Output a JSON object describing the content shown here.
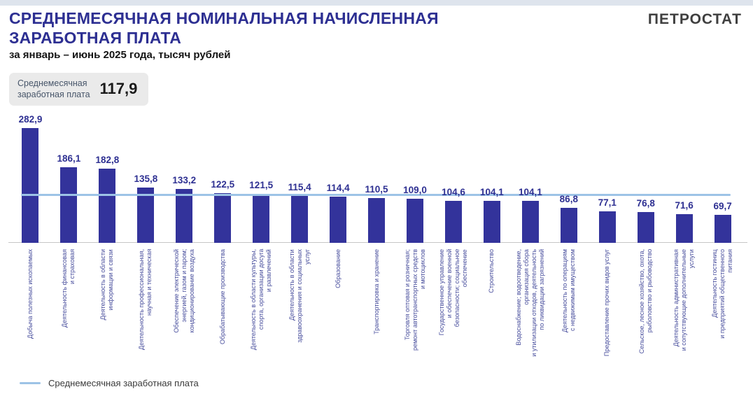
{
  "page": {
    "title": "СРЕДНЕМЕСЯЧНАЯ НОМИНАЛЬНАЯ НАЧИСЛЕННАЯ\nЗАРАБОТНАЯ ПЛАТА",
    "subtitle": "за январь – июнь 2025 года, тысяч рублей",
    "logo": "ПЕТРОСТАТ"
  },
  "average_box": {
    "label": "Среднемесячная\nзаработная плата",
    "value": "117,9"
  },
  "legend": {
    "label": "Среднемесячная заработная плата"
  },
  "colors": {
    "title": "#2d2f92",
    "bar": "#33339b",
    "average_line": "#9dc3e6",
    "value_label": "#2e3092",
    "category_label": "#474d9c",
    "axis": "#c6c6c6",
    "top_band": "#dee4ed",
    "average_box_bg": "#eaeaea"
  },
  "chart_data": {
    "type": "bar",
    "title": "Среднемесячная номинальная начисленная заработная плата за январь – июнь 2025 года, тысяч рублей",
    "ylabel": "тысяч рублей",
    "xlabel": "",
    "ylim": [
      0,
      320
    ],
    "grid": false,
    "legend_position": "bottom-left",
    "average_line": 117.9,
    "average_line_label": "Среднемесячная заработная плата",
    "categories": [
      "Добыча полезных ископаемых",
      "Деятельность финансовая\nи страховая",
      "Деятельность в области\nинформации и связи",
      "Деятельность профессиональная,\nнаучная и техническая",
      "Обеспечение электрической\nэнергией, газом и паром;\nкондиционирование воздуха",
      "Обрабатывающие производства",
      "Деятельность в области культуры,\nспорта, организации досуга\nи развлечений",
      "Деятельность в области\nздравоохранения и социальных\nуслуг",
      "Образование",
      "Транспортировка и хранение",
      "Торговля оптовая и розничная;\nремонт автотранспортных средств\nи мотоциклов",
      "Государственное управление\nи обеспечение военной\nбезопасности; социальное\nобеспечение",
      "Строительство",
      "Водоснабжение; водоотведение,\nорганизация сбора\nи утилизации отходов, деятельность\nпо ликвидации загрязнений",
      "Деятельность по операциям\nс недвижимым имуществом",
      "Предоставление прочих видов услуг",
      "Сельское, лесное хозяйство, охота,\nрыболовство и рыбоводство",
      "Деятельность административная\nи сопутствующие дополнительные\nуслуги",
      "Деятельность гостиниц\nи предприятий общественного\nпитания"
    ],
    "values": [
      282.9,
      186.1,
      182.8,
      135.8,
      133.2,
      122.5,
      121.5,
      115.4,
      114.4,
      110.5,
      109.0,
      104.6,
      104.1,
      104.1,
      86.8,
      77.1,
      76.8,
      71.6,
      69.7
    ],
    "value_labels": [
      "282,9",
      "186,1",
      "182,8",
      "135,8",
      "133,2",
      "122,5",
      "121,5",
      "115,4",
      "114,4",
      "110,5",
      "109,0",
      "104,6",
      "104,1",
      "104,1",
      "86,8",
      "77,1",
      "76,8",
      "71,6",
      "69,7"
    ]
  }
}
